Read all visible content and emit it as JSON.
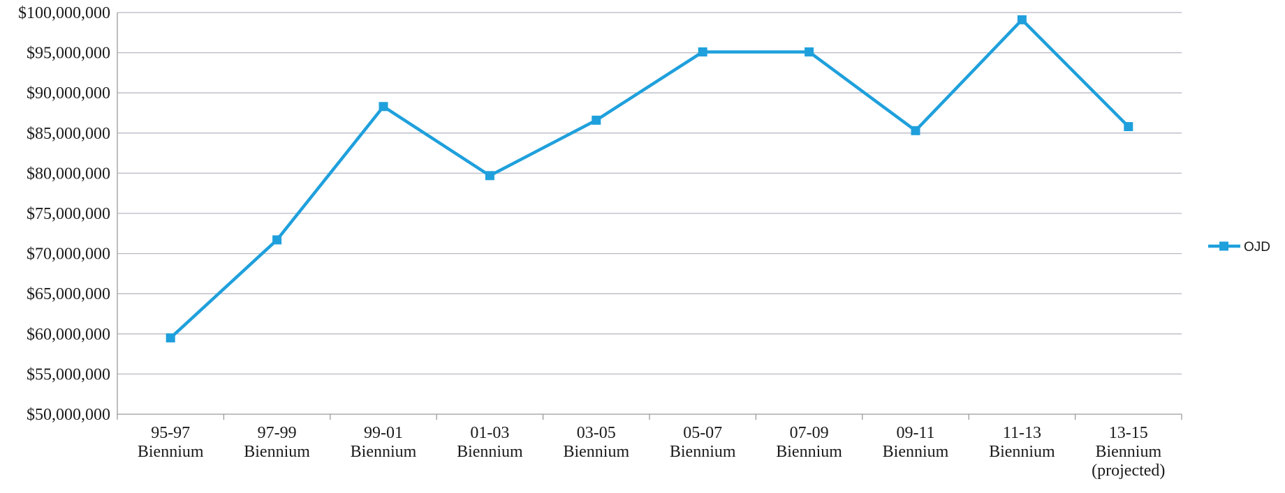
{
  "chart_data": {
    "type": "line",
    "title": "",
    "xlabel": "",
    "ylabel": "",
    "categories": [
      [
        "95-97",
        "Biennium"
      ],
      [
        "97-99",
        "Biennium"
      ],
      [
        "99-01",
        "Biennium"
      ],
      [
        "01-03",
        "Biennium"
      ],
      [
        "03-05",
        "Biennium"
      ],
      [
        "05-07",
        "Biennium"
      ],
      [
        "07-09",
        "Biennium"
      ],
      [
        "09-11",
        "Biennium"
      ],
      [
        "11-13",
        "Biennium"
      ],
      [
        "13-15",
        "Biennium",
        "(projected)"
      ]
    ],
    "series": [
      {
        "name": "OJD",
        "color": "#1fa0dc",
        "marker": "square",
        "values": [
          59500000,
          71700000,
          88300000,
          79700000,
          86600000,
          95100000,
          95100000,
          85300000,
          99100000,
          85800000
        ]
      }
    ],
    "ylim": [
      50000000,
      100000000
    ],
    "ytick_step": 5000000,
    "ytick_labels": [
      "$50,000,000",
      "$55,000,000",
      "$60,000,000",
      "$65,000,000",
      "$70,000,000",
      "$75,000,000",
      "$80,000,000",
      "$85,000,000",
      "$90,000,000",
      "$95,000,000",
      "$100,000,000"
    ],
    "grid": true,
    "legend_position": "right"
  }
}
